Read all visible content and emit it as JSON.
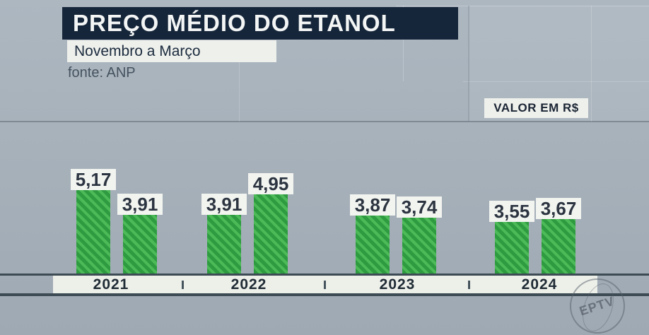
{
  "header": {
    "title": "PREÇO MÉDIO DO ETANOL",
    "subtitle": "Novembro a Março",
    "source": "fonte: ANP",
    "unit_label": "VALOR EM R$"
  },
  "watermark": "EPTV",
  "colors": {
    "background": "#a7b1ba",
    "title_bg": "#16263a",
    "title_text": "#f4f6f6",
    "box_bg": "#eef0ec",
    "bar_green_dark": "#2e9b41",
    "bar_green_light": "#4cba57",
    "axis_line": "#3c4b54",
    "value_label_text": "#2b3440"
  },
  "chart_data": {
    "type": "bar",
    "title": "PREÇO MÉDIO DO ETANOL",
    "subtitle": "Novembro a Março",
    "source": "fonte: ANP",
    "ylabel": "VALOR EM R$",
    "categories": [
      "2021",
      "2022",
      "2023",
      "2024"
    ],
    "series": [
      {
        "values": [
          5.17,
          3.91,
          3.87,
          3.55
        ]
      },
      {
        "values": [
          3.91,
          4.95,
          3.74,
          3.67
        ]
      }
    ],
    "groups": [
      {
        "year": "2021",
        "values": [
          5.17,
          3.91
        ],
        "labels": [
          "5,17",
          "3,91"
        ]
      },
      {
        "year": "2022",
        "values": [
          3.91,
          4.95
        ],
        "labels": [
          "3,91",
          "4,95"
        ]
      },
      {
        "year": "2023",
        "values": [
          3.87,
          3.74
        ],
        "labels": [
          "3,87",
          "3,74"
        ]
      },
      {
        "year": "2024",
        "values": [
          3.55,
          3.67
        ],
        "labels": [
          "3,55",
          "3,67"
        ]
      }
    ],
    "ylim": [
      0,
      5.5
    ],
    "grid": false,
    "legend": false,
    "bar_style": "green diagonal hatch"
  }
}
